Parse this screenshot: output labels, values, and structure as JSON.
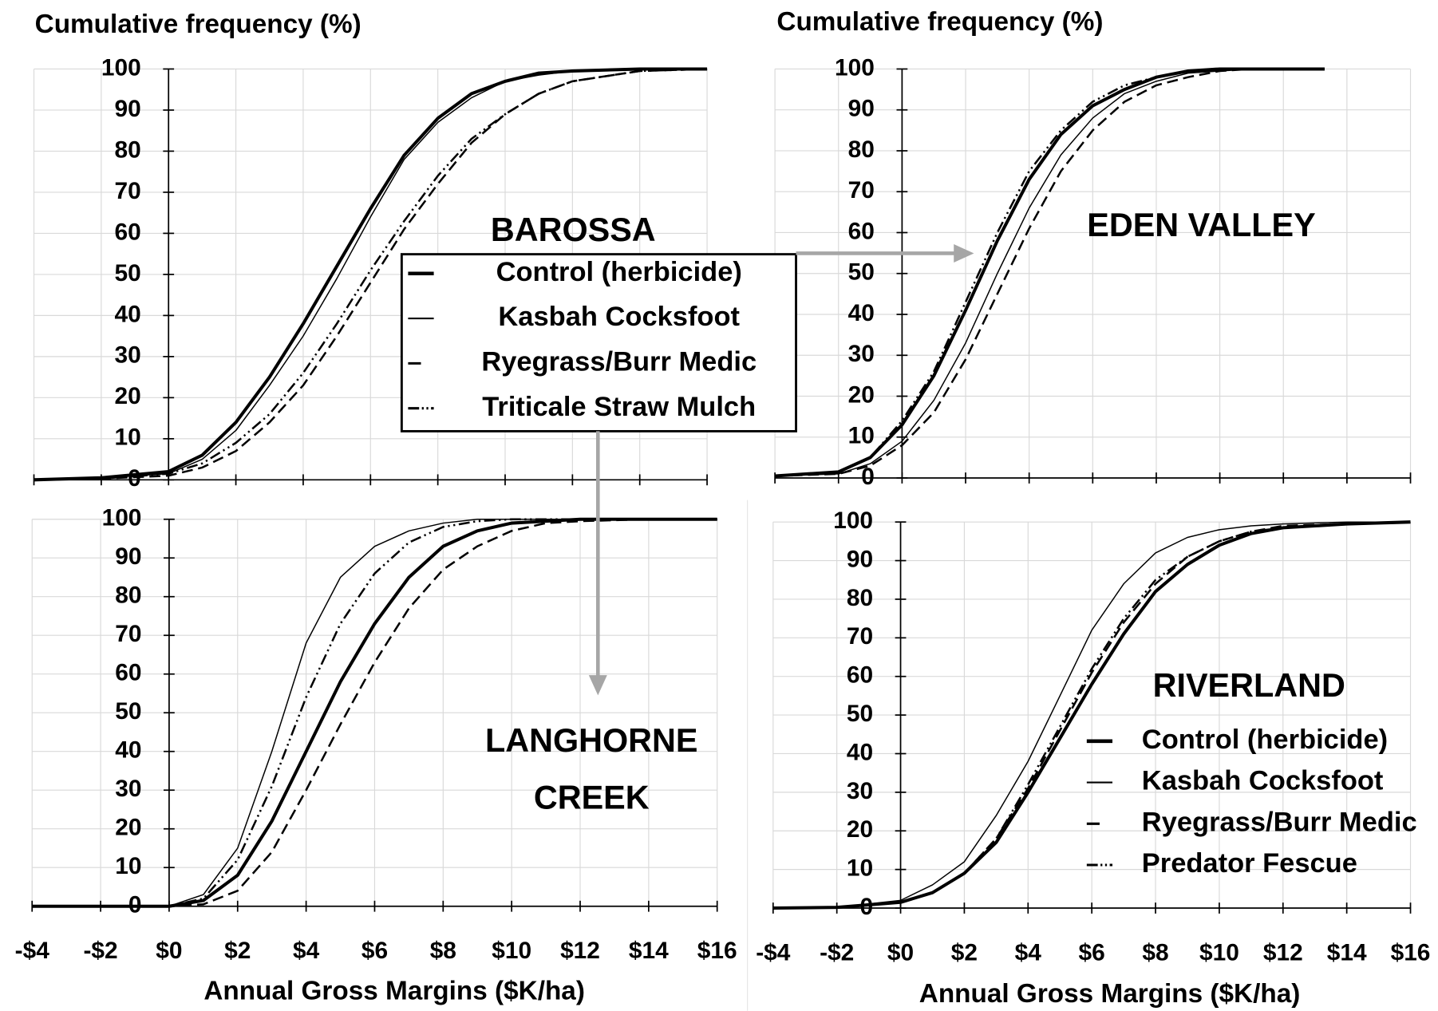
{
  "chart_data": [
    {
      "type": "line",
      "title": "BAROSSA",
      "ylabel": "Cumulative frequency (%)",
      "legend": true,
      "x": [
        -4,
        -2,
        0,
        1,
        2,
        3,
        4,
        5,
        6,
        7,
        8,
        9,
        10,
        11,
        12,
        14,
        16
      ],
      "xlim": [
        -4,
        16
      ],
      "ylim": [
        0,
        100
      ],
      "xticks": [
        -4,
        -2,
        0,
        2,
        4,
        6,
        8,
        10,
        12,
        14,
        16
      ],
      "yticks": [
        0,
        10,
        20,
        30,
        40,
        50,
        60,
        70,
        80,
        90,
        100
      ],
      "grid": true,
      "series": [
        {
          "name": "Control (herbicide)",
          "color": "#000000",
          "width": 3.5,
          "dash": "none",
          "values": [
            0,
            0.5,
            2,
            6,
            14,
            25,
            38,
            52,
            66,
            79,
            88,
            94,
            97,
            99,
            99.5,
            100,
            100
          ]
        },
        {
          "name": "Kasbah Cocksfoot",
          "color": "#000000",
          "width": 1.3,
          "dash": "none",
          "values": [
            0,
            0.5,
            1.5,
            5,
            12,
            23,
            35,
            49,
            64,
            78,
            87,
            93,
            97,
            98.5,
            99.5,
            100,
            100
          ]
        },
        {
          "name": "Ryegrass/Burr Medic",
          "color": "#000000",
          "width": 2.2,
          "dash": "12 6",
          "values": [
            0,
            0.3,
            1,
            3,
            7,
            14,
            23,
            35,
            48,
            61,
            72,
            82,
            89,
            94,
            97,
            99.5,
            100
          ]
        },
        {
          "name": "Triticale Straw Mulch",
          "color": "#000000",
          "width": 2.2,
          "dash": "12 4 2 4 2 4",
          "values": [
            0,
            0.3,
            1.5,
            4,
            9,
            16,
            26,
            38,
            51,
            63,
            74,
            83,
            89,
            94,
            97,
            99.5,
            100
          ]
        }
      ]
    },
    {
      "type": "line",
      "title": "EDEN VALLEY",
      "ylabel": "Cumulative frequency (%)",
      "x": [
        -4,
        -2,
        -1,
        0,
        1,
        2,
        3,
        4,
        5,
        6,
        7,
        8,
        9,
        10,
        11,
        12,
        13.3
      ],
      "xlim": [
        -4,
        16
      ],
      "ylim": [
        0,
        100
      ],
      "xticks": [
        -4,
        -2,
        0,
        2,
        4,
        6,
        8,
        10,
        12,
        14,
        16
      ],
      "yticks": [
        0,
        10,
        20,
        30,
        40,
        50,
        60,
        70,
        80,
        90,
        100
      ],
      "grid": true,
      "series": [
        {
          "color": "#000000",
          "width": 3.5,
          "dash": "none",
          "values": [
            0.5,
            1.5,
            5,
            13,
            25,
            41,
            58,
            73,
            84,
            91,
            95,
            98,
            99.5,
            100,
            100,
            100,
            100
          ]
        },
        {
          "color": "#000000",
          "width": 1.3,
          "dash": "none",
          "values": [
            0.5,
            1,
            3.5,
            9,
            19,
            33,
            50,
            66,
            79,
            88,
            94,
            97,
            99,
            99.5,
            100,
            100,
            100
          ]
        },
        {
          "color": "#000000",
          "width": 2.2,
          "dash": "12 6",
          "values": [
            0.5,
            1,
            3,
            8,
            16,
            29,
            45,
            61,
            75,
            85,
            92,
            96,
            98,
            99.5,
            100,
            100,
            100
          ]
        },
        {
          "color": "#000000",
          "width": 2.2,
          "dash": "12 4 2 4 2 4",
          "values": [
            0.5,
            1.5,
            5,
            14,
            26,
            43,
            60,
            75,
            85,
            92,
            96,
            98,
            99.5,
            100,
            100,
            100,
            100
          ]
        }
      ]
    },
    {
      "type": "line",
      "title": [
        "LANGHORNE",
        "CREEK"
      ],
      "xlabel": "Annual Gross Margins ($K/ha)",
      "x": [
        -4,
        -2,
        0,
        1,
        2,
        3,
        4,
        5,
        6,
        7,
        8,
        9,
        10,
        11,
        12,
        14,
        16
      ],
      "xlim": [
        -4,
        16
      ],
      "ylim": [
        0,
        100
      ],
      "xticks": [
        {
          "value": -4,
          "label": "-$4"
        },
        {
          "value": -2,
          "label": "-$2"
        },
        {
          "value": 0,
          "label": "$0"
        },
        {
          "value": 2,
          "label": "$2"
        },
        {
          "value": 4,
          "label": "$4"
        },
        {
          "value": 6,
          "label": "$6"
        },
        {
          "value": 8,
          "label": "$8"
        },
        {
          "value": 10,
          "label": "$10"
        },
        {
          "value": 12,
          "label": "$12"
        },
        {
          "value": 14,
          "label": "$14"
        },
        {
          "value": 16,
          "label": "$16"
        }
      ],
      "yticks": [
        0,
        10,
        20,
        30,
        40,
        50,
        60,
        70,
        80,
        90,
        100
      ],
      "grid": true,
      "series": [
        {
          "color": "#000000",
          "width": 3.5,
          "dash": "none",
          "values": [
            0,
            0,
            0,
            1.5,
            8,
            22,
            40,
            58,
            73,
            85,
            93,
            97,
            99,
            99.5,
            100,
            100,
            100
          ]
        },
        {
          "color": "#000000",
          "width": 1.3,
          "dash": "none",
          "values": [
            0,
            0,
            0,
            3,
            15,
            40,
            68,
            85,
            93,
            97,
            99,
            100,
            100,
            100,
            100,
            100,
            100
          ]
        },
        {
          "color": "#000000",
          "width": 2.2,
          "dash": "12 6",
          "values": [
            0,
            0,
            0,
            0.5,
            4,
            14,
            30,
            47,
            63,
            77,
            87,
            93,
            97,
            99,
            99.5,
            100,
            100
          ]
        },
        {
          "color": "#000000",
          "width": 2.2,
          "dash": "12 4 2 4 2 4",
          "values": [
            0,
            0,
            0,
            2,
            12,
            31,
            54,
            73,
            86,
            94,
            98,
            99.5,
            100,
            100,
            100,
            100,
            100
          ]
        }
      ]
    },
    {
      "type": "line",
      "title": "RIVERLAND",
      "xlabel": "Annual Gross Margins ($K/ha)",
      "legend": true,
      "x": [
        -4,
        -2,
        0,
        1,
        2,
        3,
        4,
        5,
        6,
        7,
        8,
        9,
        10,
        11,
        12,
        14,
        16
      ],
      "xlim": [
        -4,
        16
      ],
      "ylim": [
        0,
        100
      ],
      "xticks": [
        {
          "value": -4,
          "label": "-$4"
        },
        {
          "value": -2,
          "label": "-$2"
        },
        {
          "value": 0,
          "label": "$0"
        },
        {
          "value": 2,
          "label": "$2"
        },
        {
          "value": 4,
          "label": "$4"
        },
        {
          "value": 6,
          "label": "$6"
        },
        {
          "value": 8,
          "label": "$8"
        },
        {
          "value": 10,
          "label": "$10"
        },
        {
          "value": 12,
          "label": "$12"
        },
        {
          "value": 14,
          "label": "$14"
        },
        {
          "value": 16,
          "label": "$16"
        }
      ],
      "yticks": [
        0,
        10,
        20,
        30,
        40,
        50,
        60,
        70,
        80,
        90,
        100
      ],
      "grid": true,
      "series": [
        {
          "name": "Control (herbicide)",
          "color": "#000000",
          "width": 3.5,
          "dash": "none",
          "values": [
            0,
            0.2,
            1.5,
            4,
            9,
            17,
            30,
            44,
            58,
            71,
            82,
            89,
            94,
            97,
            98.5,
            99.5,
            100
          ]
        },
        {
          "name": "Kasbah Cocksfoot",
          "color": "#000000",
          "width": 1.3,
          "dash": "none",
          "values": [
            0,
            0.2,
            2,
            6,
            12,
            24,
            38,
            55,
            72,
            84,
            92,
            96,
            98,
            99,
            99.5,
            100,
            100
          ]
        },
        {
          "name": "Ryegrass/Burr Medic",
          "color": "#000000",
          "width": 2.2,
          "dash": "12 6",
          "values": [
            0,
            0.2,
            1.5,
            4,
            9,
            18,
            31,
            46,
            61,
            74,
            84,
            91,
            95,
            97.5,
            99,
            99.5,
            100
          ]
        },
        {
          "name": "Predator Fescue",
          "color": "#000000",
          "width": 2.2,
          "dash": "12 4 2 4 2 4",
          "values": [
            0,
            0.2,
            1.5,
            4,
            9,
            18,
            32,
            47,
            62,
            75,
            85,
            91,
            95,
            97.5,
            98.5,
            99.5,
            100
          ]
        }
      ]
    }
  ]
}
